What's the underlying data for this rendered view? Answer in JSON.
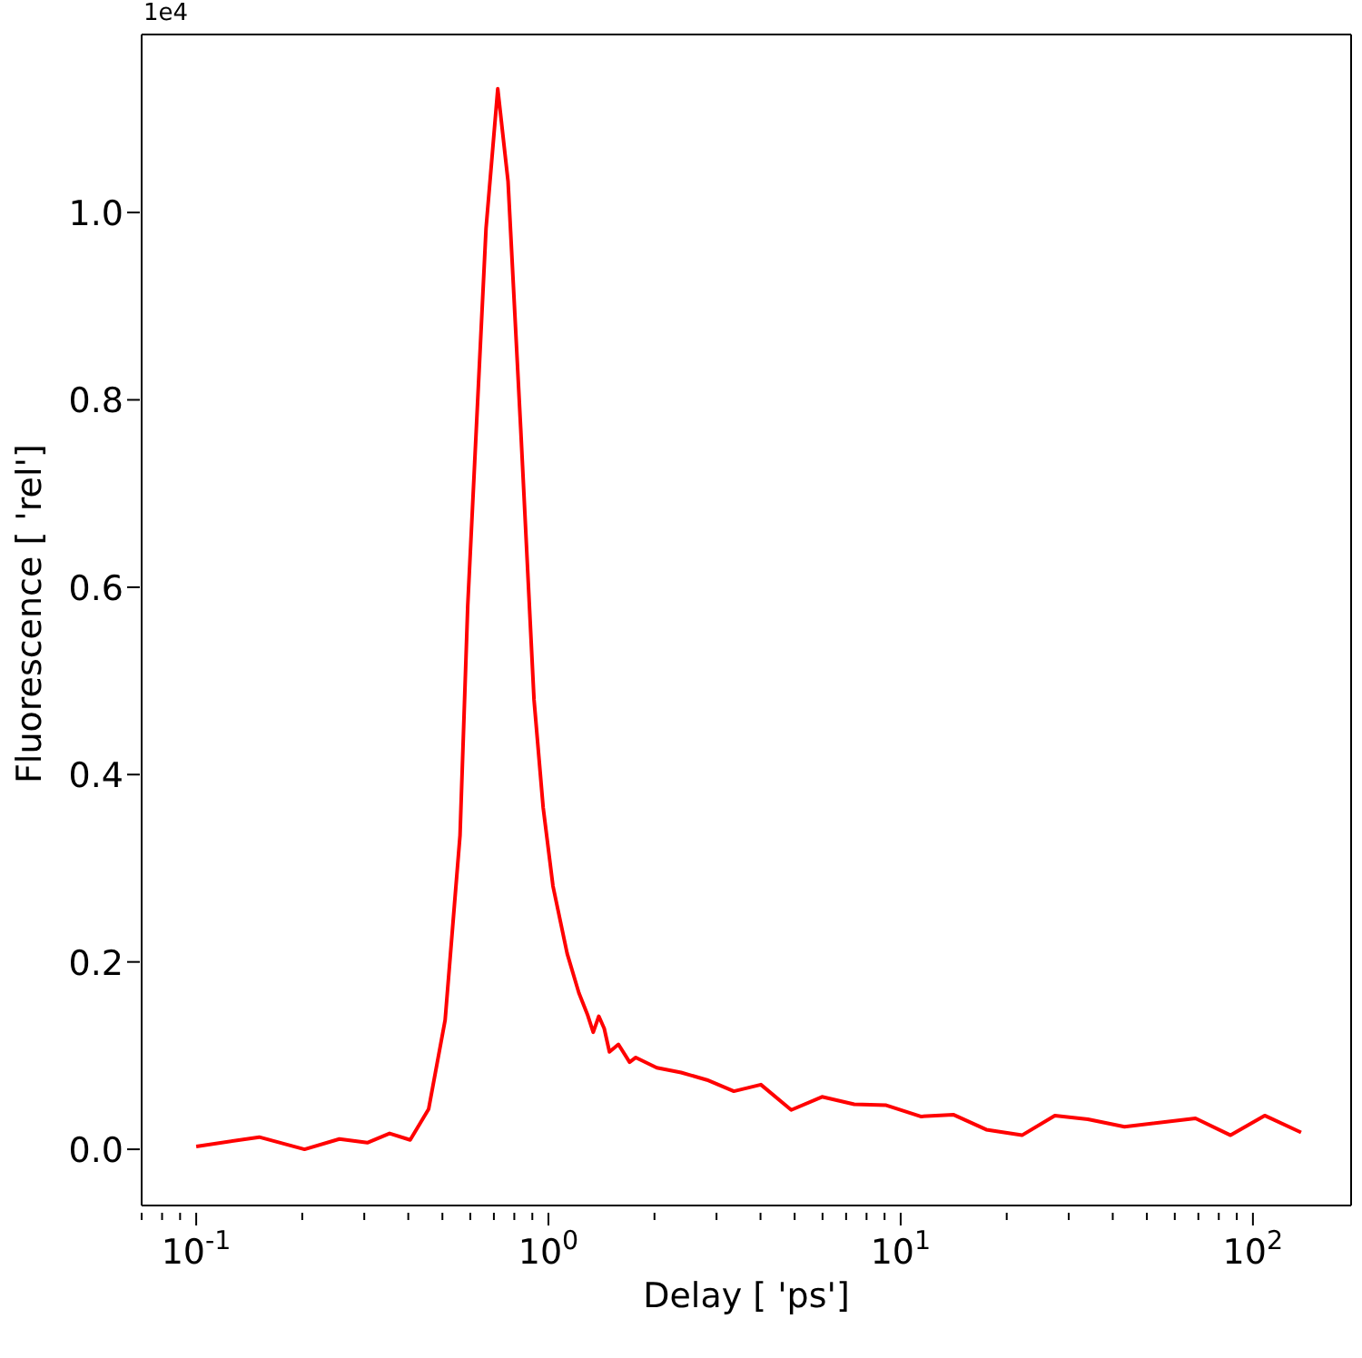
{
  "chart_data": {
    "type": "line",
    "xlabel": "Delay [ 'ps']",
    "ylabel": "Fluorescence [ 'rel']",
    "annotations": [
      "1e4"
    ],
    "log": "x",
    "marker": "none",
    "line_style": "solid",
    "xlim": [
      0.07,
      190
    ],
    "xticks": [
      {
        "value": 0.07,
        "label": null
      },
      {
        "value": 0.08,
        "label": null
      },
      {
        "value": 0.09,
        "label": null
      },
      {
        "value": 0.1,
        "label": "10$^{-1}$"
      },
      {
        "value": 0.2,
        "label": null
      },
      {
        "value": 0.3,
        "label": null
      },
      {
        "value": 0.4,
        "label": null
      },
      {
        "value": 0.5,
        "label": null
      },
      {
        "value": 0.6,
        "label": null
      },
      {
        "value": 0.7,
        "label": null
      },
      {
        "value": 0.8,
        "label": null
      },
      {
        "value": 0.9,
        "label": null
      },
      {
        "value": 1,
        "label": "10$^{0}$"
      },
      {
        "value": 2,
        "label": null
      },
      {
        "value": 3,
        "label": null
      },
      {
        "value": 4,
        "label": null
      },
      {
        "value": 5,
        "label": null
      },
      {
        "value": 6,
        "label": null
      },
      {
        "value": 7,
        "label": null
      },
      {
        "value": 8,
        "label": null
      },
      {
        "value": 9,
        "label": null
      },
      {
        "value": 10,
        "label": "10$^{1}$"
      },
      {
        "value": 20,
        "label": null
      },
      {
        "value": 30,
        "label": null
      },
      {
        "value": 40,
        "label": null
      },
      {
        "value": 50,
        "label": null
      },
      {
        "value": 60,
        "label": null
      },
      {
        "value": 70,
        "label": null
      },
      {
        "value": 80,
        "label": null
      },
      {
        "value": 90,
        "label": null
      },
      {
        "value": 100,
        "label": "10$^{2}$"
      }
    ],
    "ylim": [
      -0.06,
      1.19
    ],
    "yticks": [
      {
        "value": 0,
        "label": "0.0"
      },
      {
        "value": 0.2,
        "label": "0.2"
      },
      {
        "value": 0.4,
        "label": "0.4"
      },
      {
        "value": 0.6,
        "label": "0.6"
      },
      {
        "value": 0.8,
        "label": "0.8"
      },
      {
        "value": 1,
        "label": "1.0"
      }
    ],
    "series": [
      {
        "color": "#ff0000",
        "x": [
          0.1,
          0.151,
          0.203,
          0.255,
          0.306,
          0.354,
          0.405,
          0.457,
          0.509,
          0.561,
          0.59,
          0.665,
          0.718,
          0.768,
          0.834,
          0.91,
          0.966,
          1.03,
          1.13,
          1.22,
          1.29,
          1.34,
          1.39,
          1.44,
          1.49,
          1.58,
          1.7,
          1.77,
          2.03,
          2.38,
          2.82,
          3.36,
          4.01,
          4.89,
          5.98,
          7.38,
          9.1,
          11.4,
          14.1,
          17.5,
          22.1,
          27.4,
          34,
          43.2,
          68.7,
          86.4,
          108,
          137
        ],
        "values": [
          0.003,
          0.013,
          0.0,
          0.011,
          0.007,
          0.017,
          0.01,
          0.043,
          0.138,
          0.335,
          0.58,
          0.983,
          1.132,
          1.033,
          0.77,
          0.48,
          0.365,
          0.281,
          0.209,
          0.167,
          0.144,
          0.125,
          0.142,
          0.129,
          0.104,
          0.112,
          0.093,
          0.098,
          0.087,
          0.082,
          0.074,
          0.062,
          0.069,
          0.042,
          0.056,
          0.048,
          0.047,
          0.035,
          0.037,
          0.021,
          0.015,
          0.036,
          0.032,
          0.024,
          0.033,
          0.015,
          0.036,
          0.018
        ]
      }
    ]
  }
}
